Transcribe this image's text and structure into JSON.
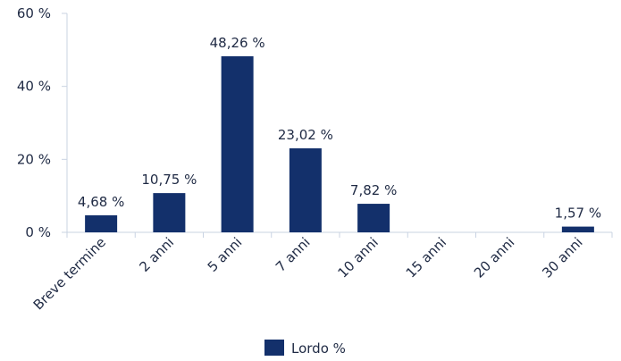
{
  "chart_data": {
    "type": "bar",
    "categories": [
      "Breve termine",
      "2 anni",
      "5 anni",
      "7 anni",
      "10 anni",
      "15 anni",
      "20 anni",
      "30 anni"
    ],
    "series": [
      {
        "name": "Lordo %",
        "values": [
          4.68,
          10.75,
          48.26,
          23.02,
          7.82,
          0,
          0,
          1.57
        ],
        "labels": [
          "4,68 %",
          "10,75 %",
          "48,26 %",
          "23,02 %",
          "7,82 %",
          "",
          "",
          "1,57 %"
        ]
      }
    ],
    "ylim": [
      0,
      60
    ],
    "yticks": [
      0,
      20,
      40,
      60
    ],
    "ytick_labels": [
      "0 %",
      "20 %",
      "40 %",
      "60 %"
    ],
    "grid": false,
    "legend": "bottom-center",
    "colors": {
      "bar": "#13306b",
      "axis": "#c9d3e2",
      "text": "#1f2a44"
    }
  }
}
